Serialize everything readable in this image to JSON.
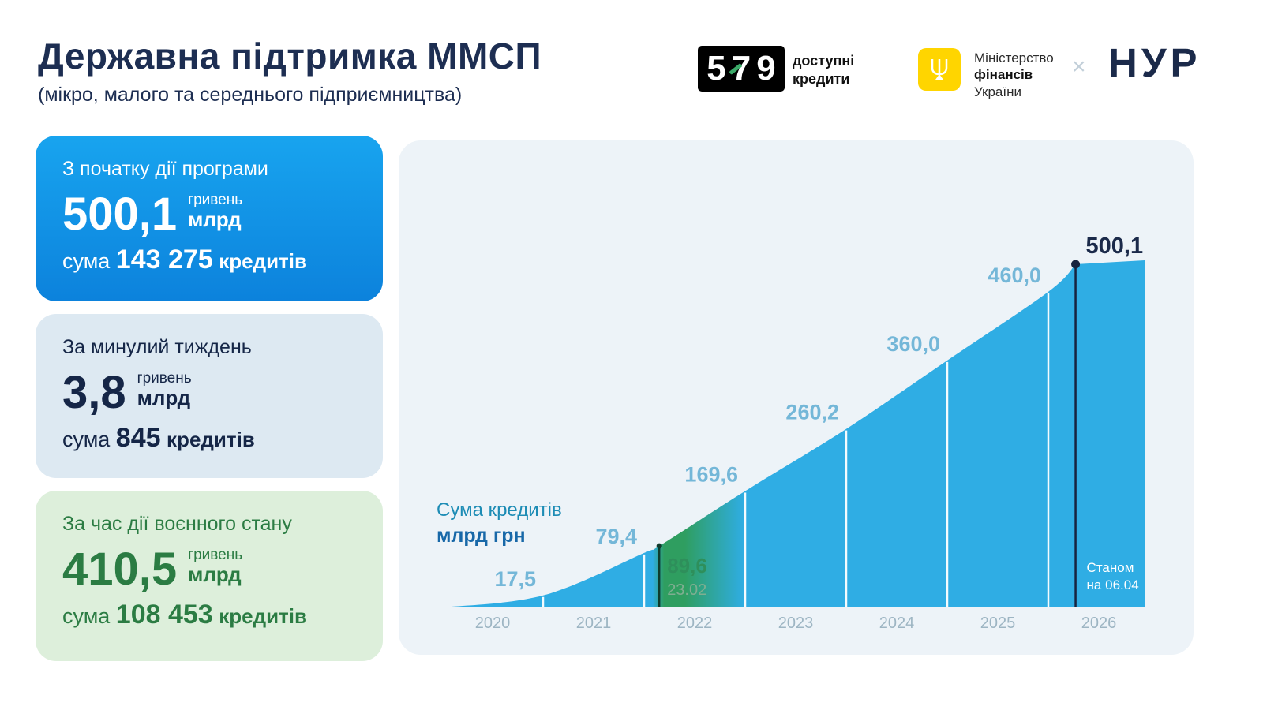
{
  "header": {
    "title": "Державна підтримка ММСП",
    "subtitle": "(мікро, малого та середнього підприємництва)",
    "logo_579": {
      "d1": "5",
      "d2": "7",
      "d3": "9",
      "label_line1": "доступні",
      "label_line2": "кредити"
    },
    "logo_minfin": {
      "line1": "Міністерство",
      "line2": "фінансів",
      "line3": "України"
    },
    "separator": "×",
    "logo_partner": "НУР"
  },
  "cards": [
    {
      "title": "З початку дії програми",
      "amount": "500,1",
      "unit_small": "гривень",
      "unit_big": "млрд",
      "sum_label": "сума",
      "count": "143 275",
      "count_unit": "кредитів"
    },
    {
      "title": "За минулий тиждень",
      "amount": "3,8",
      "unit_small": "гривень",
      "unit_big": "млрд",
      "sum_label": "сума",
      "count": "845",
      "count_unit": "кредитів"
    },
    {
      "title": "За час дії воєнного стану",
      "amount": "410,5",
      "unit_small": "гривень",
      "unit_big": "млрд",
      "sum_label": "сума",
      "count": "108 453",
      "count_unit": "кредитів"
    }
  ],
  "chart_data": {
    "type": "area",
    "title": "Сума кредитів",
    "unit": "млрд грн",
    "xlabel": "",
    "ylabel": "млрд грн",
    "ylim": [
      0,
      520
    ],
    "grid": false,
    "legend": "none",
    "area_color": "#2fade4",
    "war_zone_color": "#2f9e60",
    "value_label_color": "#74b7d8",
    "year_label_color": "#9db5c3",
    "final_label_color": "#1b2a4a",
    "war_label_color": "#2e8f5b",
    "war_sublabel_color": "#7fae91",
    "final_marker_color": "#17233f",
    "war_marker_color": "#0f3b2c",
    "x_axis_years": [
      "2020",
      "2021",
      "2022",
      "2023",
      "2024",
      "2025",
      "2026"
    ],
    "points": [
      {
        "x": 2020.0,
        "value": 0
      },
      {
        "x": 2021.0,
        "value": 17.5,
        "label": "17,5"
      },
      {
        "x": 2022.0,
        "value": 79.4,
        "label": "79,4"
      },
      {
        "x": 2022.15,
        "value": 89.6,
        "label": "89,6",
        "sublabel": "23.02",
        "marker": "war-start"
      },
      {
        "x": 2023.0,
        "value": 169.6,
        "label": "169,6"
      },
      {
        "x": 2024.0,
        "value": 260.2,
        "label": "260,2"
      },
      {
        "x": 2025.0,
        "value": 360.0,
        "label": "360,0"
      },
      {
        "x": 2026.0,
        "value": 460.0,
        "label": "460,0"
      },
      {
        "x": 2026.27,
        "value": 500.1,
        "label": "500,1",
        "marker": "final"
      }
    ],
    "note": [
      "Станом",
      "на 06.04"
    ]
  }
}
